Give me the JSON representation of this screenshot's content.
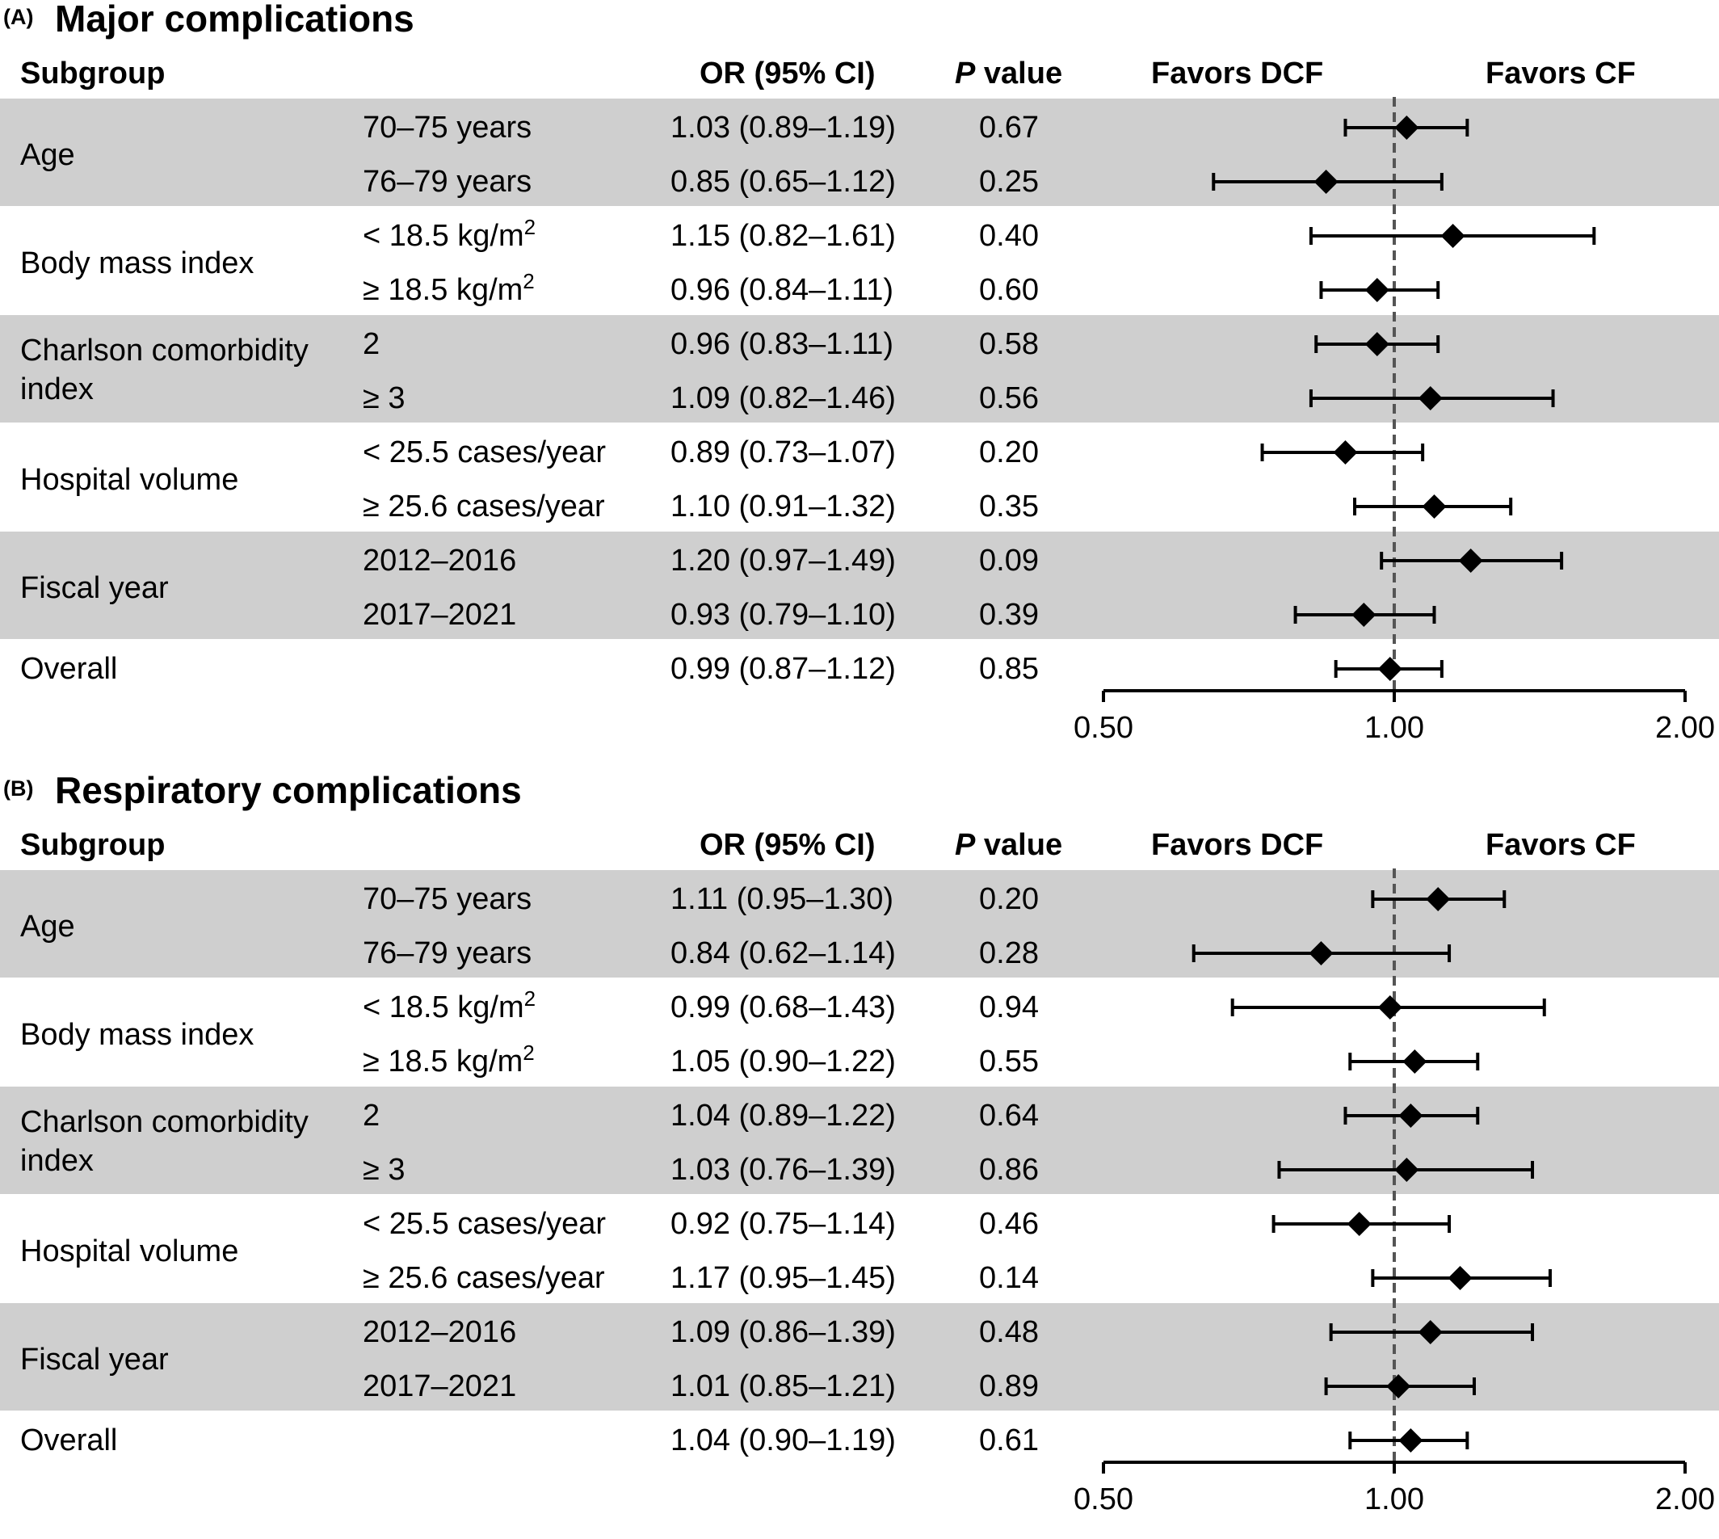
{
  "column_headers": {
    "subgroup": "Subgroup",
    "or": "OR (95% CI)",
    "p_italic": "P",
    "p_rest": " value",
    "favors_left": "Favors DCF",
    "favors_right": "Favors CF"
  },
  "axis_ticks": [
    "0.50",
    "1.00",
    "2.00"
  ],
  "chart_data": [
    {
      "type": "forest",
      "panel": "(A)",
      "title": "Major complications",
      "x_scale": "log",
      "xlim": [
        0.5,
        2.0
      ],
      "reference_line": 1.0,
      "groups": [
        {
          "name": "Age",
          "rows": [
            {
              "label": "70–75 years",
              "or_text": "1.03 (0.89–1.19)",
              "p": "0.67",
              "or": 1.03,
              "lo": 0.89,
              "hi": 1.19
            },
            {
              "label": "76–79 years",
              "or_text": "0.85 (0.65–1.12)",
              "p": "0.25",
              "or": 0.85,
              "lo": 0.65,
              "hi": 1.12
            }
          ]
        },
        {
          "name": "Body mass index",
          "rows": [
            {
              "label": "< 18.5 kg/m",
              "sup": "2",
              "or_text": "1.15 (0.82–1.61)",
              "p": "0.40",
              "or": 1.15,
              "lo": 0.82,
              "hi": 1.61
            },
            {
              "label": "≥ 18.5 kg/m",
              "sup": "2",
              "or_text": "0.96 (0.84–1.11)",
              "p": "0.60",
              "or": 0.96,
              "lo": 0.84,
              "hi": 1.11
            }
          ]
        },
        {
          "name": "Charlson comorbidity",
          "name2": "index",
          "rows": [
            {
              "label": "2",
              "or_text": "0.96 (0.83–1.11)",
              "p": "0.58",
              "or": 0.96,
              "lo": 0.83,
              "hi": 1.11
            },
            {
              "label": "≥ 3",
              "or_text": "1.09 (0.82–1.46)",
              "p": "0.56",
              "or": 1.09,
              "lo": 0.82,
              "hi": 1.46
            }
          ]
        },
        {
          "name": "Hospital volume",
          "rows": [
            {
              "label": "< 25.5 cases/year",
              "or_text": "0.89 (0.73–1.07)",
              "p": "0.20",
              "or": 0.89,
              "lo": 0.73,
              "hi": 1.07
            },
            {
              "label": "≥ 25.6 cases/year",
              "or_text": "1.10 (0.91–1.32)",
              "p": "0.35",
              "or": 1.1,
              "lo": 0.91,
              "hi": 1.32
            }
          ]
        },
        {
          "name": "Fiscal year",
          "rows": [
            {
              "label": "2012–2016",
              "or_text": "1.20 (0.97–1.49)",
              "p": "0.09",
              "or": 1.2,
              "lo": 0.97,
              "hi": 1.49
            },
            {
              "label": "2017–2021",
              "or_text": "0.93 (0.79–1.10)",
              "p": "0.39",
              "or": 0.93,
              "lo": 0.79,
              "hi": 1.1
            }
          ]
        }
      ],
      "overall": {
        "label": "Overall",
        "or_text": "0.99 (0.87–1.12)",
        "p": "0.85",
        "or": 0.99,
        "lo": 0.87,
        "hi": 1.12
      }
    },
    {
      "type": "forest",
      "panel": "(B)",
      "title": "Respiratory complications",
      "x_scale": "log",
      "xlim": [
        0.5,
        2.0
      ],
      "reference_line": 1.0,
      "groups": [
        {
          "name": "Age",
          "rows": [
            {
              "label": "70–75 years",
              "or_text": "1.11 (0.95–1.30)",
              "p": "0.20",
              "or": 1.11,
              "lo": 0.95,
              "hi": 1.3
            },
            {
              "label": "76–79 years",
              "or_text": "0.84 (0.62–1.14)",
              "p": "0.28",
              "or": 0.84,
              "lo": 0.62,
              "hi": 1.14
            }
          ]
        },
        {
          "name": "Body mass index",
          "rows": [
            {
              "label": "< 18.5 kg/m",
              "sup": "2",
              "or_text": "0.99 (0.68–1.43)",
              "p": "0.94",
              "or": 0.99,
              "lo": 0.68,
              "hi": 1.43
            },
            {
              "label": "≥ 18.5 kg/m",
              "sup": "2",
              "or_text": "1.05 (0.90–1.22)",
              "p": "0.55",
              "or": 1.05,
              "lo": 0.9,
              "hi": 1.22
            }
          ]
        },
        {
          "name": "Charlson comorbidity",
          "name2": "index",
          "rows": [
            {
              "label": "2",
              "or_text": "1.04 (0.89–1.22)",
              "p": "0.64",
              "or": 1.04,
              "lo": 0.89,
              "hi": 1.22
            },
            {
              "label": "≥ 3",
              "or_text": "1.03 (0.76–1.39)",
              "p": "0.86",
              "or": 1.03,
              "lo": 0.76,
              "hi": 1.39
            }
          ]
        },
        {
          "name": "Hospital volume",
          "rows": [
            {
              "label": "< 25.5 cases/year",
              "or_text": "0.92 (0.75–1.14)",
              "p": "0.46",
              "or": 0.92,
              "lo": 0.75,
              "hi": 1.14
            },
            {
              "label": "≥ 25.6 cases/year",
              "or_text": "1.17 (0.95–1.45)",
              "p": "0.14",
              "or": 1.17,
              "lo": 0.95,
              "hi": 1.45
            }
          ]
        },
        {
          "name": "Fiscal year",
          "rows": [
            {
              "label": "2012–2016",
              "or_text": "1.09 (0.86–1.39)",
              "p": "0.48",
              "or": 1.09,
              "lo": 0.86,
              "hi": 1.39
            },
            {
              "label": "2017–2021",
              "or_text": "1.01 (0.85–1.21)",
              "p": "0.89",
              "or": 1.01,
              "lo": 0.85,
              "hi": 1.21
            }
          ]
        }
      ],
      "overall": {
        "label": "Overall",
        "or_text": "1.04 (0.90–1.19)",
        "p": "0.61",
        "or": 1.04,
        "lo": 0.9,
        "hi": 1.19
      }
    }
  ]
}
